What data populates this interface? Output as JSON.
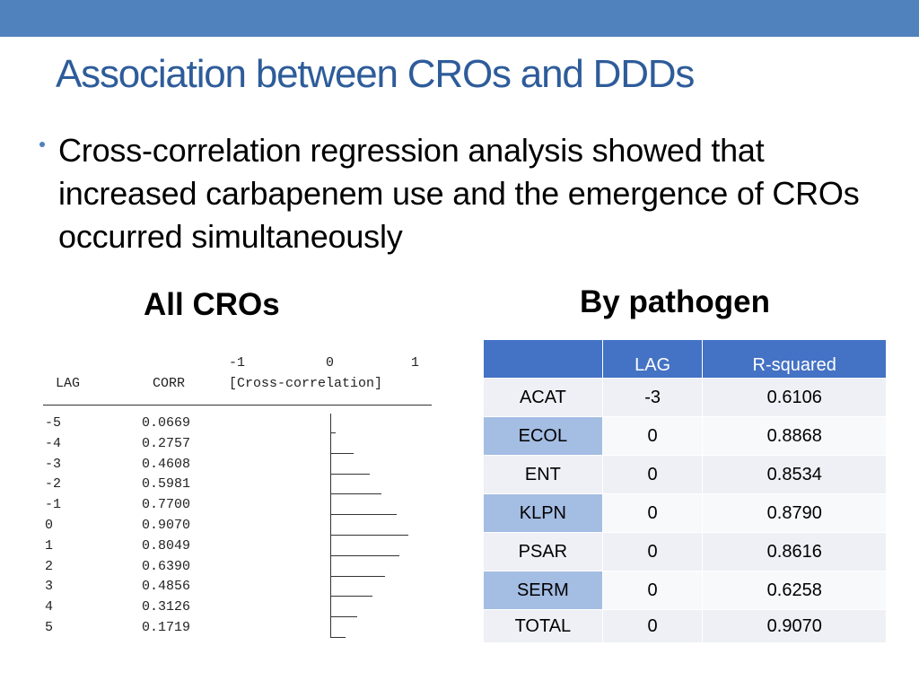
{
  "slide": {
    "title": "Association between CROs and DDDs",
    "bullet": "Cross-correlation regression analysis showed that increased carbapenem use and the emergence of CROs occurred simultaneously",
    "heading_left": "All CROs",
    "heading_right": "By pathogen",
    "accent_color": "#5082BE",
    "title_color": "#2E5C9A"
  },
  "crosscorr": {
    "scale_labels": [
      "-1",
      "0",
      "1"
    ],
    "col_lag": "LAG",
    "col_corr": "CORR",
    "col_plot": "[Cross-correlation]",
    "rows": [
      {
        "lag": "-5",
        "corr": "0.0669"
      },
      {
        "lag": "-4",
        "corr": "0.2757"
      },
      {
        "lag": "-3",
        "corr": "0.4608"
      },
      {
        "lag": "-2",
        "corr": "0.5981"
      },
      {
        "lag": "-1",
        "corr": "0.7700"
      },
      {
        "lag": "0",
        "corr": "0.9070"
      },
      {
        "lag": "1",
        "corr": "0.8049"
      },
      {
        "lag": "2",
        "corr": "0.6390"
      },
      {
        "lag": "3",
        "corr": "0.4856"
      },
      {
        "lag": "4",
        "corr": "0.3126"
      },
      {
        "lag": "5",
        "corr": "0.1719"
      }
    ]
  },
  "pathogen_table": {
    "headers": [
      "",
      "LAG",
      "R-squared"
    ],
    "rows": [
      [
        "ACAT",
        "-3",
        "0.6106"
      ],
      [
        "ECOL",
        "0",
        "0.8868"
      ],
      [
        "ENT",
        "0",
        "0.8534"
      ],
      [
        "KLPN",
        "0",
        "0.8790"
      ],
      [
        "PSAR",
        "0",
        "0.8616"
      ],
      [
        "SERM",
        "0",
        "0.6258"
      ],
      [
        "TOTAL",
        "0",
        "0.9070"
      ]
    ]
  }
}
